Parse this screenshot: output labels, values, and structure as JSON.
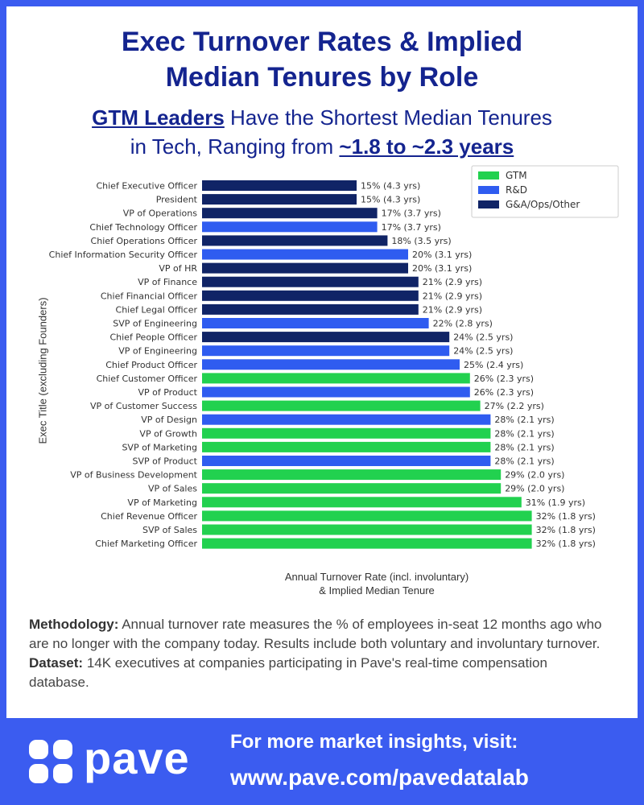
{
  "header": {
    "title_line1": "Exec Turnover Rates & Implied",
    "title_line2": "Median Tenures by Role",
    "subtitle_highlight1": "GTM Leaders",
    "subtitle_text1": " Have the Shortest Median Tenures",
    "subtitle_text2": "in Tech, Ranging from ",
    "subtitle_highlight2": "~1.8 to ~2.3 years"
  },
  "colors": {
    "GTM": "#22d14f",
    "R&D": "#2f5cf0",
    "G&A/Ops/Other": "#102466"
  },
  "chart_data": {
    "type": "bar",
    "orientation": "horizontal",
    "xlabel": "Annual Turnover Rate (incl. involuntary) & Implied Median Tenure",
    "xlabel_line1": "Annual Turnover Rate (incl. involuntary)",
    "xlabel_line2": "& Implied Median Tenure",
    "ylabel": "Exec Title (excluding Founders)",
    "xlim": [
      0,
      33
    ],
    "legend": {
      "position": "top-right",
      "entries": [
        "GTM",
        "R&D",
        "G&A/Ops/Other"
      ]
    },
    "bars": [
      {
        "label": "Chief Executive Officer",
        "value": 15,
        "tenure": 4.3,
        "group": "G&A/Ops/Other",
        "text": "15% (4.3 yrs)"
      },
      {
        "label": "President",
        "value": 15,
        "tenure": 4.3,
        "group": "G&A/Ops/Other",
        "text": "15% (4.3 yrs)"
      },
      {
        "label": "VP of Operations",
        "value": 17,
        "tenure": 3.7,
        "group": "G&A/Ops/Other",
        "text": "17% (3.7 yrs)"
      },
      {
        "label": "Chief Technology Officer",
        "value": 17,
        "tenure": 3.7,
        "group": "R&D",
        "text": "17% (3.7 yrs)"
      },
      {
        "label": "Chief Operations Officer",
        "value": 18,
        "tenure": 3.5,
        "group": "G&A/Ops/Other",
        "text": "18% (3.5 yrs)"
      },
      {
        "label": "Chief Information Security Officer",
        "value": 20,
        "tenure": 3.1,
        "group": "R&D",
        "text": "20% (3.1 yrs)"
      },
      {
        "label": "VP of HR",
        "value": 20,
        "tenure": 3.1,
        "group": "G&A/Ops/Other",
        "text": "20% (3.1 yrs)"
      },
      {
        "label": "VP of Finance",
        "value": 21,
        "tenure": 2.9,
        "group": "G&A/Ops/Other",
        "text": "21% (2.9 yrs)"
      },
      {
        "label": "Chief Financial Officer",
        "value": 21,
        "tenure": 2.9,
        "group": "G&A/Ops/Other",
        "text": "21% (2.9 yrs)"
      },
      {
        "label": "Chief Legal Officer",
        "value": 21,
        "tenure": 2.9,
        "group": "G&A/Ops/Other",
        "text": "21% (2.9 yrs)"
      },
      {
        "label": "SVP of Engineering",
        "value": 22,
        "tenure": 2.8,
        "group": "R&D",
        "text": "22% (2.8 yrs)"
      },
      {
        "label": "Chief People Officer",
        "value": 24,
        "tenure": 2.5,
        "group": "G&A/Ops/Other",
        "text": "24% (2.5 yrs)"
      },
      {
        "label": "VP of Engineering",
        "value": 24,
        "tenure": 2.5,
        "group": "R&D",
        "text": "24% (2.5 yrs)"
      },
      {
        "label": "Chief Product Officer",
        "value": 25,
        "tenure": 2.4,
        "group": "R&D",
        "text": "25% (2.4 yrs)"
      },
      {
        "label": "Chief Customer Officer",
        "value": 26,
        "tenure": 2.3,
        "group": "GTM",
        "text": "26% (2.3 yrs)"
      },
      {
        "label": "VP of Product",
        "value": 26,
        "tenure": 2.3,
        "group": "R&D",
        "text": "26% (2.3 yrs)"
      },
      {
        "label": "VP of Customer Success",
        "value": 27,
        "tenure": 2.2,
        "group": "GTM",
        "text": "27% (2.2 yrs)"
      },
      {
        "label": "VP of Design",
        "value": 28,
        "tenure": 2.1,
        "group": "R&D",
        "text": "28% (2.1 yrs)"
      },
      {
        "label": "VP of Growth",
        "value": 28,
        "tenure": 2.1,
        "group": "GTM",
        "text": "28% (2.1 yrs)"
      },
      {
        "label": "SVP of Marketing",
        "value": 28,
        "tenure": 2.1,
        "group": "GTM",
        "text": "28% (2.1 yrs)"
      },
      {
        "label": "SVP of Product",
        "value": 28,
        "tenure": 2.1,
        "group": "R&D",
        "text": "28% (2.1 yrs)"
      },
      {
        "label": "VP of Business Development",
        "value": 29,
        "tenure": 2.0,
        "group": "GTM",
        "text": "29% (2.0 yrs)"
      },
      {
        "label": "VP of Sales",
        "value": 29,
        "tenure": 2.0,
        "group": "GTM",
        "text": "29% (2.0 yrs)"
      },
      {
        "label": "VP of Marketing",
        "value": 31,
        "tenure": 1.9,
        "group": "GTM",
        "text": "31% (1.9 yrs)"
      },
      {
        "label": "Chief Revenue Officer",
        "value": 32,
        "tenure": 1.8,
        "group": "GTM",
        "text": "32% (1.8 yrs)"
      },
      {
        "label": "SVP of Sales",
        "value": 32,
        "tenure": 1.8,
        "group": "GTM",
        "text": "32% (1.8 yrs)"
      },
      {
        "label": "Chief Marketing Officer",
        "value": 32,
        "tenure": 1.8,
        "group": "GTM",
        "text": "32% (1.8 yrs)"
      }
    ]
  },
  "notes": {
    "methodology_label": "Methodology:",
    "methodology_text": " Annual turnover rate measures the % of employees in-seat 12 months ago who are no longer with the company today. Results include both voluntary and involuntary turnover.",
    "dataset_label": "Dataset:",
    "dataset_text": " 14K executives at companies participating in Pave's real-time compensation database."
  },
  "footer": {
    "logo_text": "pave",
    "line1": "For more market insights, visit:",
    "line2": "www.pave.com/pavedatalab"
  }
}
